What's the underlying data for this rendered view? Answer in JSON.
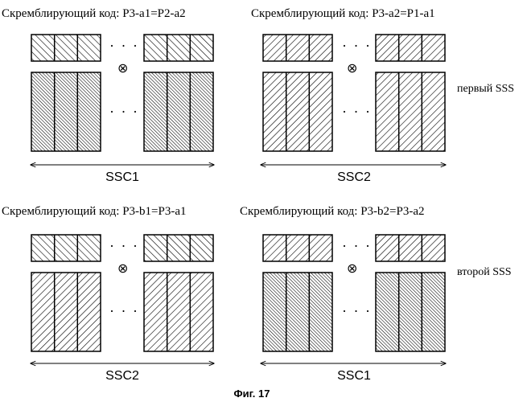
{
  "panels": [
    {
      "title": "Скремблирующий код: P3-a1=P2-a2",
      "small_pattern": "back",
      "big_pattern": "dense",
      "ssc_label": "SSC1"
    },
    {
      "title": "Скремблирующий код: P3-a2=P1-a1",
      "small_pattern": "fwd",
      "big_pattern": "fwd",
      "ssc_label": "SSC2"
    },
    {
      "title": "Скремблирующий код: P3-b1=P3-a1",
      "small_pattern": "back",
      "big_pattern": "fwd",
      "ssc_label": "SSC2"
    },
    {
      "title": "Скремблирующий код: P3-b2=P3-a2",
      "small_pattern": "fwd",
      "big_pattern": "dense",
      "ssc_label": "SSC1"
    }
  ],
  "ellipsis": "· · ·",
  "operator_symbol": "⊗",
  "side_labels": [
    "первый SSS",
    "второй SSS"
  ],
  "figure_caption": "Фиг. 17"
}
